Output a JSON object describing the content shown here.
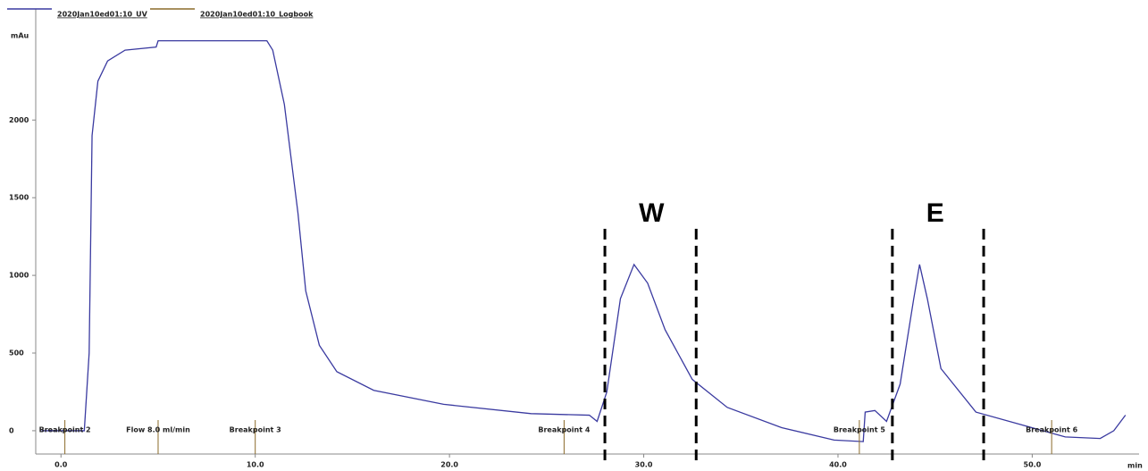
{
  "chart_data": {
    "type": "line",
    "ylabel": "mAu",
    "xlabel": "min",
    "xlim": [
      -1.3,
      55.5
    ],
    "ylim": [
      -150,
      2600
    ],
    "xticks": [
      {
        "value": 0,
        "label": "0.0"
      },
      {
        "value": 10,
        "label": "10.0"
      },
      {
        "value": 20,
        "label": "20.0"
      },
      {
        "value": 30,
        "label": "30.0"
      },
      {
        "value": 40,
        "label": "40.0"
      },
      {
        "value": 50,
        "label": "50.0"
      }
    ],
    "yticks": [
      0,
      500,
      1000,
      1500,
      2000
    ],
    "series": [
      {
        "name": "2020Jan10ed01:10_UV",
        "color": "#3a3aa0",
        "x": [
          -1.0,
          1.2,
          1.45,
          1.6,
          1.9,
          2.4,
          3.3,
          4.9,
          5.0,
          10.6,
          10.9,
          11.5,
          12.2,
          12.6,
          13.3,
          14.2,
          16.1,
          19.7,
          24.2,
          27.2,
          27.6,
          28.1,
          28.8,
          29.5,
          30.2,
          31.1,
          32.5,
          34.3,
          37.1,
          39.8,
          41.3,
          41.4,
          41.9,
          42.5,
          43.2,
          43.9,
          44.2,
          44.6,
          45.3,
          47.1,
          49.4,
          51.7,
          53.5,
          54.2,
          54.8
        ],
        "values": [
          0,
          0,
          500,
          1900,
          2250,
          2380,
          2450,
          2470,
          2510,
          2510,
          2450,
          2100,
          1400,
          900,
          550,
          380,
          260,
          170,
          110,
          100,
          60,
          250,
          850,
          1070,
          950,
          650,
          330,
          150,
          20,
          -60,
          -70,
          120,
          130,
          60,
          300,
          850,
          1070,
          850,
          400,
          120,
          40,
          -40,
          -50,
          0,
          100
        ]
      },
      {
        "name": "2020Jan10ed01:10_Logbook",
        "color": "#8b6b2a"
      }
    ],
    "events": [
      {
        "x": 0.2,
        "label": "Breakpoint 2"
      },
      {
        "x": 5.0,
        "label": "Flow 8.0 ml/min"
      },
      {
        "x": 10.0,
        "label": "Breakpoint 3"
      },
      {
        "x": 25.9,
        "label": "Breakpoint 4"
      },
      {
        "x": 41.1,
        "label": "Breakpoint 5"
      },
      {
        "x": 51.0,
        "label": "Breakpoint 6"
      }
    ],
    "annotations": [
      {
        "text": "W",
        "x": 30.4,
        "bounds": [
          28.0,
          32.7
        ]
      },
      {
        "text": "E",
        "x": 45.0,
        "bounds": [
          42.8,
          47.5
        ]
      }
    ]
  }
}
